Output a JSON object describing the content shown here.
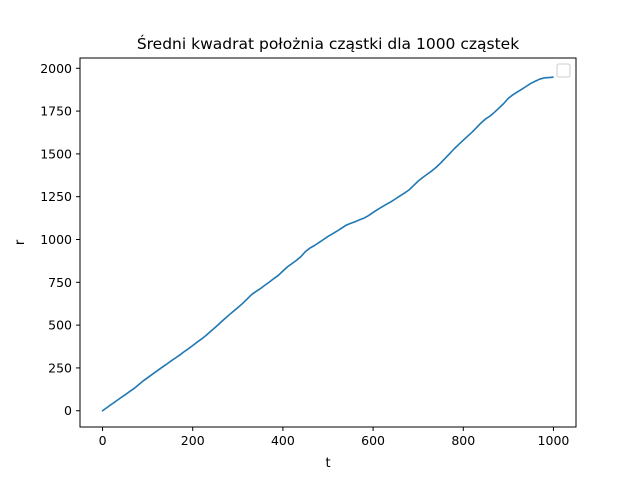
{
  "chart_data": {
    "type": "line",
    "title": "Średni kwadrat położnia cząstki dla 1000 cząstek",
    "xlabel": "t",
    "ylabel": "r",
    "xlim": [
      -50,
      1050
    ],
    "ylim": [
      -95,
      2060
    ],
    "xticks": [
      0,
      200,
      400,
      600,
      800,
      1000
    ],
    "yticks": [
      0,
      250,
      500,
      750,
      1000,
      1250,
      1500,
      1750,
      2000
    ],
    "grid": false,
    "legend": "top-right",
    "line_color": "#1f77b4",
    "series": [
      {
        "x": [
          0,
          10,
          20,
          30,
          40,
          50,
          60,
          70,
          80,
          90,
          100,
          110,
          120,
          130,
          140,
          150,
          160,
          170,
          180,
          190,
          200,
          210,
          220,
          230,
          240,
          250,
          260,
          270,
          280,
          290,
          300,
          310,
          320,
          330,
          340,
          350,
          360,
          370,
          380,
          390,
          400,
          410,
          420,
          430,
          440,
          450,
          460,
          470,
          480,
          490,
          500,
          510,
          520,
          530,
          540,
          550,
          560,
          570,
          580,
          590,
          600,
          610,
          620,
          630,
          640,
          650,
          660,
          670,
          680,
          690,
          700,
          710,
          720,
          730,
          740,
          750,
          760,
          770,
          780,
          790,
          800,
          810,
          820,
          830,
          840,
          850,
          860,
          870,
          880,
          890,
          900,
          910,
          920,
          930,
          940,
          950,
          960,
          970,
          980,
          990,
          999
        ],
        "values": [
          0,
          19,
          38,
          56,
          75,
          93,
          112,
          130,
          152,
          174,
          193,
          212,
          231,
          250,
          268,
          287,
          305,
          323,
          343,
          361,
          381,
          401,
          420,
          441,
          464,
          487,
          511,
          535,
          558,
          580,
          602,
          625,
          651,
          677,
          696,
          713,
          733,
          752,
          772,
          791,
          816,
          840,
          859,
          878,
          900,
          930,
          950,
          965,
          982,
          1000,
          1018,
          1033,
          1049,
          1066,
          1083,
          1094,
          1104,
          1115,
          1125,
          1140,
          1158,
          1175,
          1191,
          1206,
          1221,
          1238,
          1255,
          1272,
          1290,
          1316,
          1341,
          1362,
          1381,
          1400,
          1422,
          1447,
          1475,
          1502,
          1530,
          1555,
          1580,
          1604,
          1628,
          1655,
          1682,
          1705,
          1722,
          1745,
          1770,
          1795,
          1825,
          1845,
          1862,
          1878,
          1895,
          1912,
          1925,
          1937,
          1944,
          1946,
          1948
        ]
      }
    ]
  }
}
